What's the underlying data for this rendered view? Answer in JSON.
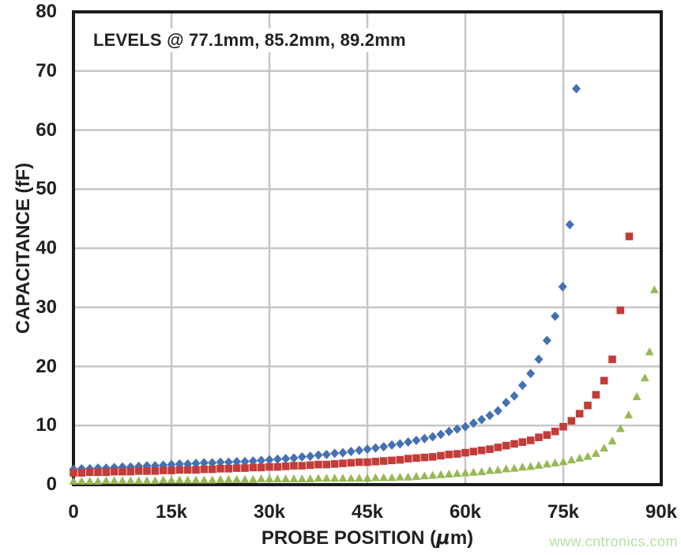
{
  "figure": {
    "annotation": "LEVELS @ 77.1mm, 85.2mm, 89.2mm",
    "watermark": "www.cntronics.com",
    "xlabel_parts": {
      "prefix": "PROBE POSITION (",
      "mu": "μ",
      "suffix": "m)"
    },
    "ylabel": "CAPACITANCE (fF)"
  },
  "chart_data": {
    "type": "scatter",
    "title": "LEVELS @ 77.1mm, 85.2mm, 89.2mm",
    "xlabel": "PROBE POSITION (μm)",
    "ylabel": "CAPACITANCE (fF)",
    "xlim_k": [
      0,
      90
    ],
    "ylim": [
      0,
      80
    ],
    "grid": true,
    "legend": "none",
    "x_unit": "thousand μm",
    "y_unit": "fF",
    "style": {
      "grid_color": "#c6c6c6",
      "border_color": "#1a1a1a",
      "background": "#ffffff",
      "text_color": "#231f20",
      "watermark_color": "#b5dfa3"
    },
    "x_ticks": [
      {
        "value_k": 0,
        "label": "0"
      },
      {
        "value_k": 15,
        "label": "15k"
      },
      {
        "value_k": 30,
        "label": "30k"
      },
      {
        "value_k": 45,
        "label": "45k"
      },
      {
        "value_k": 60,
        "label": "60k"
      },
      {
        "value_k": 75,
        "label": "75k"
      },
      {
        "value_k": 90,
        "label": "90k"
      }
    ],
    "y_ticks": [
      0,
      10,
      20,
      30,
      40,
      50,
      60,
      70,
      80
    ],
    "series": [
      {
        "name": "level-77.1mm",
        "marker": "diamond",
        "color": "#4470b4",
        "x_k": [
          0,
          1.25,
          2.5,
          3.75,
          5,
          6.25,
          7.5,
          8.75,
          10,
          11.25,
          12.5,
          13.75,
          15,
          16.25,
          17.5,
          18.75,
          20,
          21.25,
          22.5,
          23.75,
          25,
          26.25,
          27.5,
          28.75,
          30,
          31.25,
          32.5,
          33.75,
          35,
          36.25,
          37.5,
          38.75,
          40,
          41.25,
          42.5,
          43.75,
          45,
          46.25,
          47.5,
          48.75,
          50,
          51.25,
          52.5,
          53.75,
          55,
          56.25,
          57.5,
          58.75,
          60,
          61.25,
          62.5,
          63.75,
          65,
          66.25,
          67.5,
          68.75,
          70,
          71.25,
          72.5,
          73.75,
          74.9,
          76,
          77
        ],
        "y_fF": [
          2.6,
          2.7,
          2.7,
          2.8,
          2.8,
          2.9,
          3,
          3,
          3.1,
          3.2,
          3.2,
          3.3,
          3.4,
          3.5,
          3.5,
          3.6,
          3.7,
          3.7,
          3.8,
          3.8,
          3.9,
          3.9,
          4,
          4.1,
          4.2,
          4.3,
          4.4,
          4.5,
          4.7,
          4.8,
          5,
          5.1,
          5.3,
          5.4,
          5.6,
          5.8,
          6,
          6.2,
          6.4,
          6.7,
          6.9,
          7.2,
          7.5,
          7.8,
          8.1,
          8.5,
          9,
          9.4,
          9.8,
          10.4,
          11,
          11.7,
          12.5,
          13.9,
          15,
          16.8,
          18.8,
          21.2,
          24.4,
          28.5,
          33.5,
          44,
          67
        ]
      },
      {
        "name": "level-85.2mm",
        "marker": "square",
        "color": "#c23c3a",
        "x_k": [
          0,
          1.25,
          2.5,
          3.75,
          5,
          6.25,
          7.5,
          8.75,
          10,
          11.25,
          12.5,
          13.75,
          15,
          16.25,
          17.5,
          18.75,
          20,
          21.25,
          22.5,
          23.75,
          25,
          26.25,
          27.5,
          28.75,
          30,
          31.25,
          32.5,
          33.75,
          35,
          36.25,
          37.5,
          38.75,
          40,
          41.25,
          42.5,
          43.75,
          45,
          46.25,
          47.5,
          48.75,
          50,
          51.25,
          52.5,
          53.75,
          55,
          56.25,
          57.5,
          58.75,
          60,
          61.25,
          62.5,
          63.75,
          65,
          66.25,
          67.5,
          68.75,
          70,
          71.25,
          72.5,
          73.75,
          75,
          76.25,
          77.5,
          78.75,
          80,
          81.25,
          82.5,
          83.75,
          85.1
        ],
        "y_fF": [
          2,
          2,
          2.1,
          2.1,
          2.1,
          2.2,
          2.2,
          2.2,
          2.3,
          2.3,
          2.3,
          2.4,
          2.4,
          2.5,
          2.5,
          2.5,
          2.6,
          2.6,
          2.7,
          2.7,
          2.8,
          2.8,
          2.9,
          2.9,
          3,
          3,
          3.1,
          3.2,
          3.2,
          3.3,
          3.4,
          3.4,
          3.5,
          3.6,
          3.7,
          3.8,
          3.8,
          3.9,
          4,
          4.1,
          4.2,
          4.4,
          4.5,
          4.6,
          4.7,
          4.9,
          5.1,
          5.2,
          5.4,
          5.6,
          5.8,
          6,
          6.3,
          6.6,
          6.9,
          7.2,
          7.5,
          8,
          8.4,
          9,
          9.8,
          10.8,
          12,
          13.4,
          15.2,
          17.6,
          21.2,
          29.5,
          42
        ]
      },
      {
        "name": "level-89.2mm",
        "marker": "triangle",
        "color": "#99b855",
        "x_k": [
          0,
          1.25,
          2.5,
          3.75,
          5,
          6.25,
          7.5,
          8.75,
          10,
          11.25,
          12.5,
          13.75,
          15,
          16.25,
          17.5,
          18.75,
          20,
          21.25,
          22.5,
          23.75,
          25,
          26.25,
          27.5,
          28.75,
          30,
          31.25,
          32.5,
          33.75,
          35,
          36.25,
          37.5,
          38.75,
          40,
          41.25,
          42.5,
          43.75,
          45,
          46.25,
          47.5,
          48.75,
          50,
          51.25,
          52.5,
          53.75,
          55,
          56.25,
          57.5,
          58.75,
          60,
          61.25,
          62.5,
          63.75,
          65,
          66.25,
          67.5,
          68.75,
          70,
          71.25,
          72.5,
          73.75,
          75,
          76.25,
          77.5,
          78.75,
          80,
          81.25,
          82.5,
          83.75,
          85,
          86.25,
          87.5,
          88.2,
          88.95
        ],
        "y_fF": [
          0.6,
          0.6,
          0.6,
          0.6,
          0.7,
          0.7,
          0.7,
          0.7,
          0.7,
          0.7,
          0.7,
          0.8,
          0.8,
          0.8,
          0.8,
          0.8,
          0.8,
          0.8,
          0.9,
          0.9,
          0.9,
          0.9,
          0.9,
          1,
          1,
          1,
          1,
          1,
          1,
          1,
          1.1,
          1.1,
          1.1,
          1.1,
          1.1,
          1.1,
          1.1,
          1.2,
          1.2,
          1.2,
          1.3,
          1.3,
          1.4,
          1.5,
          1.6,
          1.7,
          1.8,
          1.9,
          2,
          2.1,
          2.2,
          2.4,
          2.5,
          2.7,
          2.8,
          3,
          3.1,
          3.3,
          3.5,
          3.7,
          3.9,
          4.2,
          4.5,
          4.8,
          5.3,
          6.2,
          7.4,
          9.5,
          11.8,
          14.9,
          18.1,
          22.5,
          33
        ]
      }
    ]
  }
}
